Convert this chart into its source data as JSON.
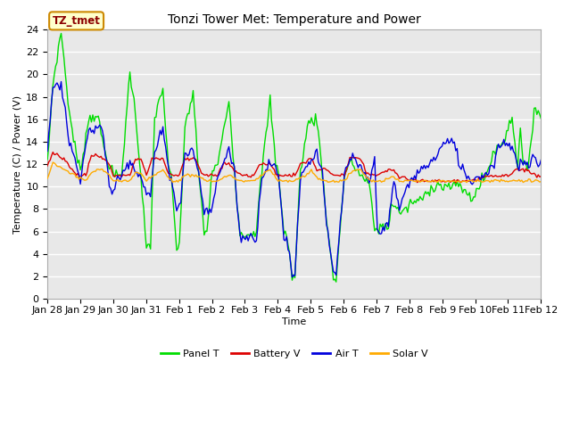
{
  "title": "Tonzi Tower Met: Temperature and Power",
  "xlabel": "Time",
  "ylabel": "Temperature (C) / Power (V)",
  "ylim": [
    0,
    24
  ],
  "yticks": [
    0,
    2,
    4,
    6,
    8,
    10,
    12,
    14,
    16,
    18,
    20,
    22,
    24
  ],
  "tz_label": "TZ_tmet",
  "fig_bg_color": "#ffffff",
  "plot_bg_color": "#e8e8e8",
  "grid_color": "#ffffff",
  "legend_entries": [
    "Panel T",
    "Battery V",
    "Air T",
    "Solar V"
  ],
  "legend_colors": [
    "#00dd00",
    "#dd0000",
    "#0000dd",
    "#ffaa00"
  ],
  "line_colors": {
    "panel_t": "#00dd00",
    "battery_v": "#dd0000",
    "air_t": "#0000dd",
    "solar_v": "#ffaa00"
  },
  "x_tick_labels": [
    "Jan 28",
    "Jan 29",
    "Jan 30",
    "Jan 31",
    "Feb 1",
    "Feb 2",
    "Feb 3",
    "Feb 4",
    "Feb 5",
    "Feb 6",
    "Feb 7",
    "Feb 8",
    "Feb 9",
    "Feb 10",
    "Feb 11",
    "Feb 12"
  ],
  "lw": 1.0,
  "title_fontsize": 10,
  "axis_label_fontsize": 8,
  "tick_fontsize": 8,
  "legend_fontsize": 8
}
